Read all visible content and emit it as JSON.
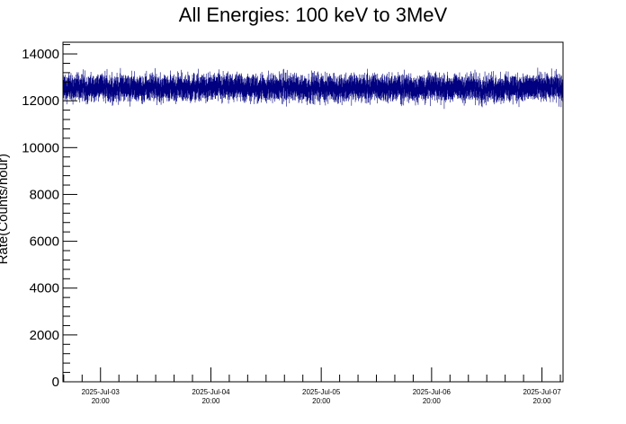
{
  "chart_data": {
    "type": "line",
    "title": "All Energies:  100 keV to 3MeV",
    "xlabel": "",
    "ylabel": "Rate(Counts/hour)",
    "x_range": [
      "2025-07-03 11:50",
      "2025-07-08 00:35"
    ],
    "ylim": [
      0,
      14500
    ],
    "y_ticks": [
      0,
      2000,
      4000,
      6000,
      8000,
      10000,
      12000,
      14000
    ],
    "x_ticks": [
      {
        "date": "2025-Jul-03",
        "time": "20:00"
      },
      {
        "date": "2025-Jul-04",
        "time": "20:00"
      },
      {
        "date": "2025-Jul-05",
        "time": "20:00"
      },
      {
        "date": "2025-Jul-06",
        "time": "20:00"
      },
      {
        "date": "2025-Jul-07",
        "time": "20:00"
      }
    ],
    "grid": false,
    "legend": "none",
    "series": [
      {
        "color": "#000080",
        "sampling": "5-min bins with Poisson error bars",
        "mean": 12550,
        "typical_min": 11800,
        "typical_max": 13700,
        "start": "2025-07-03 11:50",
        "end": "2025-07-08 00:35"
      }
    ]
  }
}
